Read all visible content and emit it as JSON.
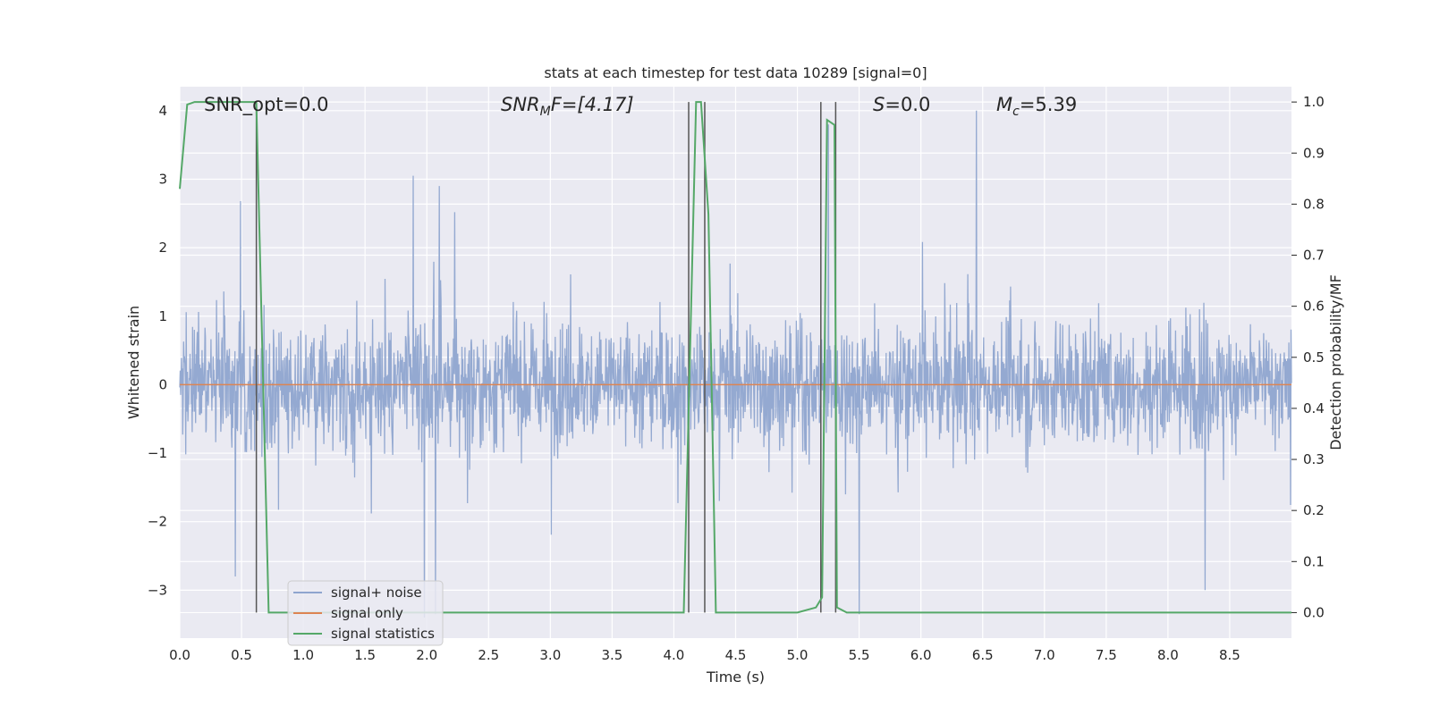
{
  "chart_data": {
    "type": "line",
    "title": "stats at each timestep for test data 10289 [signal=0]",
    "xlabel": "Time (s)",
    "ylabel_left": "Whitened strain",
    "ylabel_right": "Detection probability/MF",
    "xlim": [
      0.0,
      9.0
    ],
    "ylim_left": [
      -3.7,
      4.35
    ],
    "ylim_right": [
      -0.05,
      1.03
    ],
    "x_ticks": [
      "0.0",
      "0.5",
      "1.0",
      "1.5",
      "2.0",
      "2.5",
      "3.0",
      "3.5",
      "4.0",
      "4.5",
      "5.0",
      "5.5",
      "6.0",
      "6.5",
      "7.0",
      "7.5",
      "8.0",
      "8.5"
    ],
    "y_ticks_left": [
      "−3",
      "−2",
      "−1",
      "0",
      "1",
      "2",
      "3",
      "4"
    ],
    "y_ticks_right": [
      "0.0",
      "0.1",
      "0.2",
      "0.3",
      "0.4",
      "0.5",
      "0.6",
      "0.7",
      "0.8",
      "0.9",
      "1.0"
    ],
    "grid": true,
    "legend_position": "lower-left",
    "annotations": {
      "snr_opt": "SNR_opt=0.0",
      "snr_mf_base": "SNR",
      "snr_mf_sub": "M",
      "snr_mf_rest": "F=[4.17]",
      "s_italic": "S",
      "s_rest": "=0.0",
      "mc_base": "M",
      "mc_sub": "c",
      "mc_rest": "=5.39"
    },
    "series": [
      {
        "name": "signal+ noise",
        "color": "#8fa5cf",
        "description_values": "whitened noise samples, roughly Gaussian, mostly within [-1.5, 1.5] with spikes up to about 4 and down to about -3.4",
        "spike_examples": [
          [
            0.49,
            2.68
          ],
          [
            1.89,
            3.05
          ],
          [
            2.1,
            2.9
          ],
          [
            5.25,
            3.8
          ],
          [
            6.45,
            4.0
          ],
          [
            0.45,
            -2.8
          ],
          [
            1.98,
            -3.4
          ],
          [
            2.07,
            -3.35
          ],
          [
            5.5,
            -3.35
          ],
          [
            8.3,
            -3.0
          ]
        ]
      },
      {
        "name": "signal only",
        "color": "#dd8452",
        "x": [
          0.0,
          9.0
        ],
        "y": [
          0.0,
          0.0
        ]
      },
      {
        "name": "signal statistics",
        "color": "#55a868",
        "axis": "right",
        "x": [
          0.0,
          0.06,
          0.12,
          0.2,
          0.4,
          0.6,
          0.62,
          0.72,
          1.0,
          2.0,
          3.0,
          4.0,
          4.08,
          4.18,
          4.22,
          4.28,
          4.34,
          4.4,
          4.8,
          5.0,
          5.15,
          5.2,
          5.24,
          5.3,
          5.32,
          5.4,
          5.5,
          6.0,
          7.0,
          8.0,
          9.0
        ],
        "y": [
          0.83,
          0.995,
          1.0,
          1.0,
          1.0,
          1.0,
          1.0,
          0.0,
          0.0,
          0.0,
          0.0,
          0.0,
          0.0,
          1.0,
          1.0,
          0.78,
          0.0,
          0.0,
          0.0,
          0.0,
          0.01,
          0.03,
          0.965,
          0.955,
          0.01,
          0.0,
          0.0,
          0.0,
          0.0,
          0.0,
          0.0
        ]
      }
    ],
    "vertical_markers_x": [
      0.62,
      4.12,
      4.25,
      5.19,
      5.31
    ],
    "vertical_markers_color": "#555555"
  }
}
